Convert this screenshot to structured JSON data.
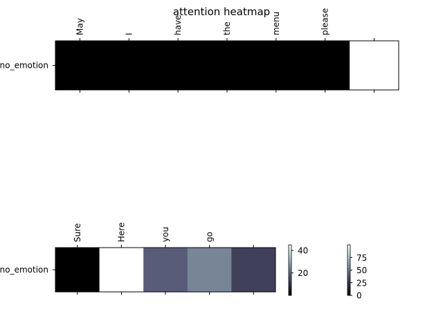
{
  "title": "attention heatmap",
  "chart_data": [
    {
      "type": "heatmap",
      "title": "attention heatmap",
      "row_labels": [
        "no_emotion"
      ],
      "x_tick_labels": [
        "May",
        "I",
        "have",
        "the",
        "menu",
        "please",
        ""
      ],
      "values": [
        [
          0,
          0,
          0,
          0,
          0,
          0,
          100
        ]
      ],
      "colormap": "bone",
      "colorbar": {
        "ticks": [
          0,
          25,
          50,
          75
        ],
        "range": [
          0,
          100
        ]
      }
    },
    {
      "type": "heatmap",
      "row_labels": [
        "no_emotion"
      ],
      "x_tick_labels": [
        "Sure",
        "Here",
        "you",
        "go",
        ""
      ],
      "values": [
        [
          0,
          45,
          18,
          24,
          13
        ]
      ],
      "colormap": "bone",
      "colorbar": {
        "ticks": [
          20,
          40
        ],
        "range": [
          0,
          45
        ]
      }
    }
  ]
}
